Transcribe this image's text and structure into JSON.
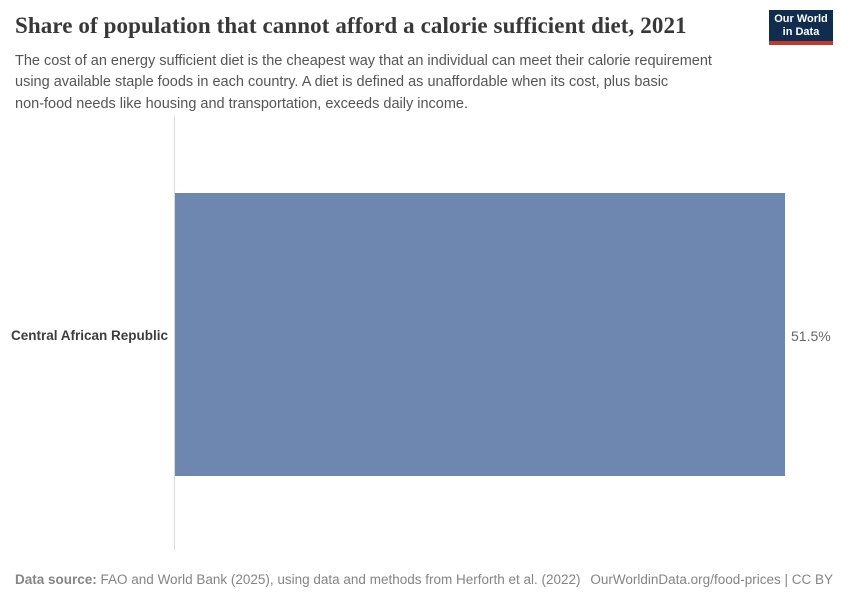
{
  "header": {
    "title": "Share of population that cannot afford a calorie sufficient diet, 2021",
    "logo": {
      "line1": "Our World",
      "line2": "in Data"
    }
  },
  "subtitle": {
    "lines": [
      "The cost of an energy sufficient diet is the cheapest way that an individual can meet their calorie requirement",
      "using available staple foods in each country. A diet is defined as unaffordable when its cost, plus basic",
      "non-food needs like housing and transportation, exceeds daily income."
    ]
  },
  "chart": {
    "entity_label": "Central African Republic",
    "value_label": "51.5%"
  },
  "footer": {
    "datasource_label": "Data source:",
    "datasource_text": " FAO and World Bank (2025), using data and methods from Herforth et al. (2022)",
    "link_text": "OurWorldinData.org/food-prices | CC BY"
  },
  "colors": {
    "bar": "#6d87b0",
    "logo_bg": "#102d50",
    "logo_stripe": "#c0392b",
    "axis_line": "#dcdcdc"
  },
  "chart_data": {
    "type": "bar",
    "orientation": "horizontal",
    "title": "Share of population that cannot afford a calorie sufficient diet, 2021",
    "categories": [
      "Central African Republic"
    ],
    "values": [
      51.5
    ],
    "unit": "%",
    "value_labels": [
      "51.5%"
    ],
    "xlabel": "",
    "ylabel": "",
    "xlim": [
      0,
      51.5
    ],
    "grid": false,
    "legend": false
  }
}
